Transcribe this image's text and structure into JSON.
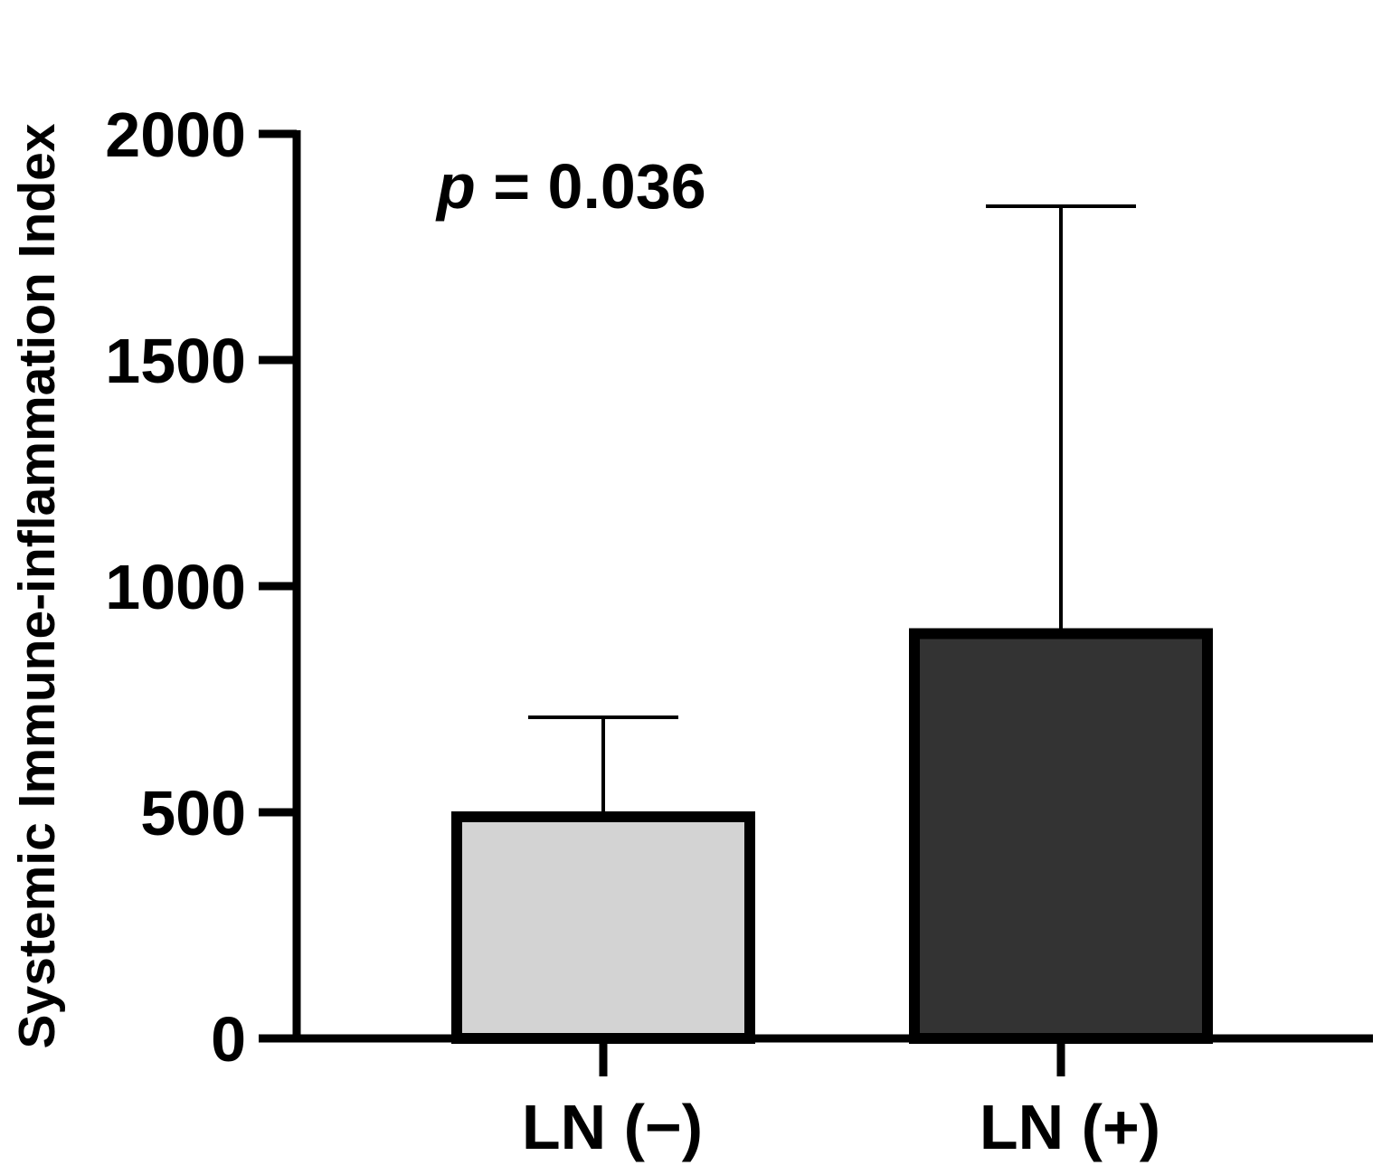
{
  "chart_data": {
    "type": "bar",
    "title": "",
    "xlabel": "",
    "ylabel": "Systemic Immune-inflammation Index",
    "categories": [
      "LN (−)",
      "LN (+)"
    ],
    "values": [
      490,
      895
    ],
    "error_upper": [
      710,
      1840
    ],
    "ylim": [
      0,
      2000
    ],
    "yticks": [
      0,
      500,
      1000,
      1500,
      2000
    ],
    "ytick_labels": [
      "0",
      "500",
      "1000",
      "1500",
      "2000"
    ],
    "bar_colors": [
      "#d3d3d3",
      "#333333"
    ],
    "edge_color": "#000000",
    "grid": false,
    "annotation": {
      "p_symbol": "p",
      "p_value_text": " = 0.036"
    }
  }
}
